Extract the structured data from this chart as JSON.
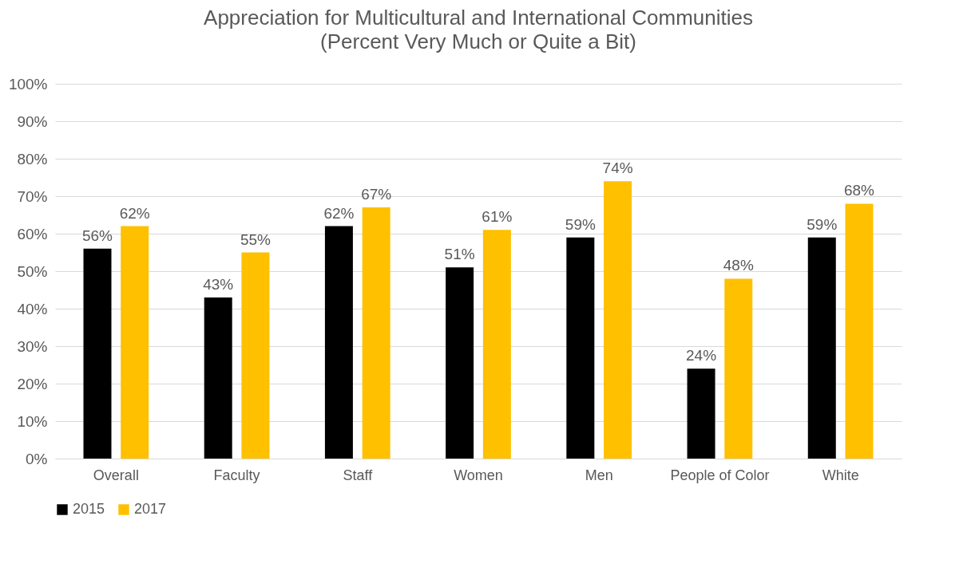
{
  "chart_data": {
    "type": "bar",
    "title": "Appreciation for Multicultural and International Communities",
    "subtitle": "(Percent Very Much or Quite a Bit)",
    "categories": [
      "Overall",
      "Faculty",
      "Staff",
      "Women",
      "Men",
      "People of Color",
      "White"
    ],
    "series": [
      {
        "name": "2015",
        "color": "#000000",
        "values": [
          56,
          43,
          62,
          51,
          59,
          24,
          59
        ],
        "value_labels": [
          "56%",
          "43%",
          "62%",
          "51%",
          "59%",
          "24%",
          "59%"
        ]
      },
      {
        "name": "2017",
        "color": "#ffc000",
        "values": [
          62,
          55,
          67,
          61,
          74,
          48,
          68
        ],
        "value_labels": [
          "62%",
          "55%",
          "67%",
          "61%",
          "74%",
          "48%",
          "68%"
        ]
      }
    ],
    "ylim": [
      0,
      100
    ],
    "yticks": [
      {
        "value": 0,
        "label": "0%"
      },
      {
        "value": 10,
        "label": "10%"
      },
      {
        "value": 20,
        "label": "20%"
      },
      {
        "value": 30,
        "label": "30%"
      },
      {
        "value": 40,
        "label": "40%"
      },
      {
        "value": 50,
        "label": "50%"
      },
      {
        "value": 60,
        "label": "60%"
      },
      {
        "value": 70,
        "label": "70%"
      },
      {
        "value": 80,
        "label": "80%"
      },
      {
        "value": 90,
        "label": "90%"
      },
      {
        "value": 100,
        "label": "100%"
      }
    ],
    "grid": "y",
    "legend": "bottom"
  }
}
